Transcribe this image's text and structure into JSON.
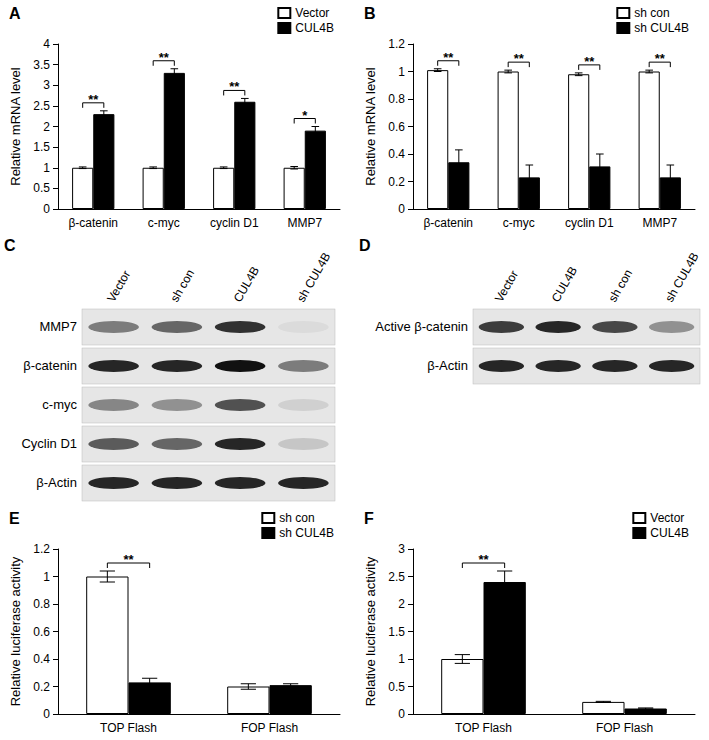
{
  "chart_data": [
    {
      "type": "bar",
      "title": "A",
      "y_label": "Relative mRNA level",
      "categories": [
        "β-catenin",
        "c-myc",
        "cyclin D1",
        "MMP7"
      ],
      "series": [
        {
          "name": "Vector",
          "color": "#ffffff",
          "values": [
            1,
            1,
            1,
            1
          ],
          "errors": [
            0.02,
            0.02,
            0.02,
            0.03
          ]
        },
        {
          "name": "CUL4B",
          "color": "#000000",
          "values": [
            2.3,
            3.3,
            2.6,
            1.9
          ],
          "errors": [
            0.08,
            0.1,
            0.08,
            0.1
          ]
        }
      ],
      "significance": [
        {
          "category": "β-catenin",
          "label": "**"
        },
        {
          "category": "c-myc",
          "label": "**"
        },
        {
          "category": "cyclin D1",
          "label": "**"
        },
        {
          "category": "MMP7",
          "label": "*"
        }
      ],
      "ylim": [
        0,
        4
      ],
      "yticks": [
        0,
        0.5,
        1,
        1.5,
        2,
        2.5,
        3,
        3.5,
        4
      ],
      "grid": false,
      "legend": "upper right"
    },
    {
      "type": "bar",
      "title": "B",
      "y_label": "Relative mRNA level",
      "categories": [
        "β-catenin",
        "c-myc",
        "cyclin D1",
        "MMP7"
      ],
      "series": [
        {
          "name": "sh con",
          "color": "#ffffff",
          "values": [
            1.01,
            1.0,
            0.98,
            1.0
          ],
          "errors": [
            0.01,
            0.01,
            0.01,
            0.01
          ]
        },
        {
          "name": "sh CUL4B",
          "color": "#000000",
          "values": [
            0.34,
            0.23,
            0.31,
            0.23
          ],
          "errors": [
            0.09,
            0.09,
            0.09,
            0.09
          ]
        }
      ],
      "significance": [
        {
          "category": "β-catenin",
          "label": "**"
        },
        {
          "category": "c-myc",
          "label": "**"
        },
        {
          "category": "cyclin D1",
          "label": "**"
        },
        {
          "category": "MMP7",
          "label": "**"
        }
      ],
      "ylim": [
        0,
        1.2
      ],
      "yticks": [
        0,
        0.2,
        0.4,
        0.6,
        0.8,
        1,
        1.2
      ],
      "grid": false,
      "legend": "upper right"
    },
    {
      "type": "bar",
      "title": "E",
      "y_label": "Relative luciferase activity",
      "categories": [
        "TOP Flash",
        "FOP Flash"
      ],
      "series": [
        {
          "name": "sh con",
          "color": "#ffffff",
          "values": [
            1.0,
            0.2
          ],
          "errors": [
            0.04,
            0.02
          ]
        },
        {
          "name": "sh CUL4B",
          "color": "#000000",
          "values": [
            0.23,
            0.21
          ],
          "errors": [
            0.03,
            0.01
          ]
        }
      ],
      "significance": [
        {
          "category": "TOP Flash",
          "label": "**"
        }
      ],
      "ylim": [
        0,
        1.2
      ],
      "yticks": [
        0,
        0.2,
        0.4,
        0.6,
        0.8,
        1,
        1.2
      ],
      "grid": false,
      "legend": "upper right"
    },
    {
      "type": "bar",
      "title": "F",
      "y_label": "Relative luciferase activity",
      "categories": [
        "TOP Flash",
        "FOP Flash"
      ],
      "series": [
        {
          "name": "Vector",
          "color": "#ffffff",
          "values": [
            1.0,
            0.22
          ],
          "errors": [
            0.08,
            0.01
          ]
        },
        {
          "name": "CUL4B",
          "color": "#000000",
          "values": [
            2.4,
            0.1
          ],
          "errors": [
            0.2,
            0.01
          ]
        }
      ],
      "significance": [
        {
          "category": "TOP Flash",
          "label": "**"
        }
      ],
      "ylim": [
        0,
        3
      ],
      "yticks": [
        0,
        0.5,
        1,
        1.5,
        2,
        2.5,
        3
      ],
      "grid": false,
      "legend": "upper right"
    }
  ],
  "blots": [
    {
      "title": "C",
      "lanes": [
        "Vector",
        "sh con",
        "CUL4B",
        "sh CUL4B"
      ],
      "rows": [
        {
          "label": "MMP7",
          "band_intensity": [
            0.5,
            0.6,
            0.85,
            0.05
          ]
        },
        {
          "label": "β-catenin",
          "band_intensity": [
            0.9,
            0.9,
            1.0,
            0.5
          ]
        },
        {
          "label": "c-myc",
          "band_intensity": [
            0.45,
            0.4,
            0.7,
            0.1
          ]
        },
        {
          "label": "Cyclin D1",
          "band_intensity": [
            0.65,
            0.6,
            0.9,
            0.15
          ]
        },
        {
          "label": "β-Actin",
          "band_intensity": [
            0.9,
            0.9,
            0.9,
            0.9
          ]
        }
      ]
    },
    {
      "title": "D",
      "lanes": [
        "Vector",
        "CUL4B",
        "sh con",
        "sh CUL4B"
      ],
      "rows": [
        {
          "label": "Active β-catenin",
          "band_intensity": [
            0.8,
            0.9,
            0.75,
            0.4
          ]
        },
        {
          "label": "β-Actin",
          "band_intensity": [
            0.9,
            0.9,
            0.9,
            0.9
          ]
        }
      ]
    }
  ]
}
